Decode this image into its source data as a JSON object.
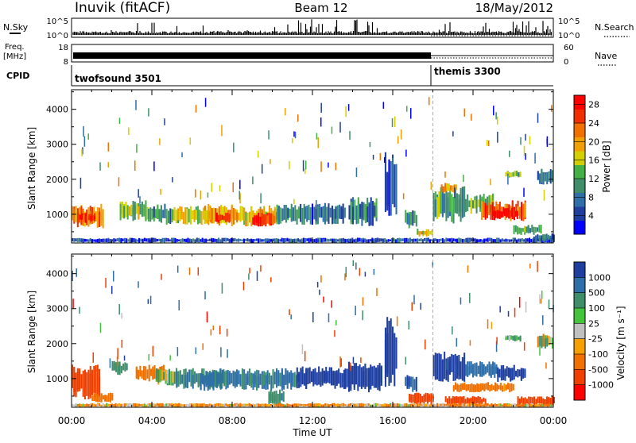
{
  "header": {
    "station": "Inuvik (fitACF)",
    "beam": "Beam 12",
    "date": "18/May/2012"
  },
  "strip_labels": {
    "nsky": "N.Sky",
    "nsearch": "N.Search",
    "freq_line1": "Freq.",
    "freq_line2": "[MHz]",
    "nave": "Nave",
    "cpid": "CPID"
  },
  "strip_ticks": {
    "nsky_left": [
      "10^5",
      "10^0"
    ],
    "nsky_right": [
      "10^5",
      "10^0"
    ],
    "freq_left": [
      "18",
      "8"
    ],
    "nave_right": [
      "60",
      "0"
    ]
  },
  "modes": [
    {
      "label": "twofsound 3501",
      "start_hour": 0
    },
    {
      "label": "themis 3300",
      "start_hour": 18
    }
  ],
  "colors": {
    "power_scale": [
      "#0000ff",
      "#1f3f9f",
      "#2e6ea9",
      "#3e8e6a",
      "#45b045",
      "#d4d000",
      "#f0a000",
      "#f07000",
      "#f03000",
      "#ff0000"
    ],
    "velocity_scale": [
      "#1f3fa0",
      "#2e6ea9",
      "#3e8e6a",
      "#44c43a",
      "#c0c0c0",
      "#f5a000",
      "#f07000",
      "#f04000",
      "#ff0000"
    ]
  },
  "chart_data": [
    {
      "type": "heatmap",
      "panel": "power",
      "ylabel": "Slant Range [km]",
      "xlabel": "",
      "x_ticks": [
        "00:00",
        "04:00",
        "08:00",
        "12:00",
        "16:00",
        "20:00",
        "00:00"
      ],
      "y_ticks": [
        1000,
        2000,
        3000,
        4000
      ],
      "ylim": [
        180,
        4560
      ],
      "xlim_hours": [
        0,
        24
      ],
      "colorbar_label": "Power [dB]",
      "colorbar_ticks": [
        4,
        8,
        12,
        16,
        20,
        24,
        28
      ],
      "colorbar_range": [
        0,
        30
      ],
      "mode_change_hour": 18,
      "bands": [
        {
          "t0": 0.0,
          "t1": 1.6,
          "r0": 600,
          "r1": 1300,
          "value": 22
        },
        {
          "t0": 0.3,
          "t1": 1.2,
          "r0": 750,
          "r1": 1050,
          "value": 27
        },
        {
          "t0": 2.4,
          "t1": 3.8,
          "r0": 800,
          "r1": 1400,
          "value": 14
        },
        {
          "t0": 3.8,
          "t1": 5.0,
          "r0": 700,
          "r1": 1300,
          "value": 10
        },
        {
          "t0": 5.0,
          "t1": 7.0,
          "r0": 700,
          "r1": 1250,
          "value": 16
        },
        {
          "t0": 6.6,
          "t1": 8.2,
          "r0": 650,
          "r1": 1300,
          "value": 20
        },
        {
          "t0": 7.2,
          "t1": 7.9,
          "r0": 750,
          "r1": 1050,
          "value": 26
        },
        {
          "t0": 8.2,
          "t1": 10.2,
          "r0": 650,
          "r1": 1250,
          "value": 18
        },
        {
          "t0": 9.0,
          "t1": 10.1,
          "r0": 650,
          "r1": 1050,
          "value": 27
        },
        {
          "t0": 10.2,
          "t1": 11.6,
          "r0": 700,
          "r1": 1300,
          "value": 10
        },
        {
          "t0": 11.6,
          "t1": 13.6,
          "r0": 700,
          "r1": 1350,
          "value": 7
        },
        {
          "t0": 13.8,
          "t1": 15.2,
          "r0": 650,
          "r1": 1500,
          "value": 9
        },
        {
          "t0": 15.6,
          "t1": 16.2,
          "r0": 700,
          "r1": 2800,
          "value": 6
        },
        {
          "t0": 16.6,
          "t1": 17.2,
          "r0": 600,
          "r1": 1150,
          "value": 8
        },
        {
          "t0": 18.0,
          "t1": 19.6,
          "r0": 700,
          "r1": 1800,
          "value": 12
        },
        {
          "t0": 18.4,
          "t1": 19.2,
          "r0": 1600,
          "r1": 1900,
          "value": 20
        },
        {
          "t0": 19.6,
          "t1": 21.0,
          "r0": 1000,
          "r1": 1600,
          "value": 14
        },
        {
          "t0": 20.4,
          "t1": 22.6,
          "r0": 800,
          "r1": 1400,
          "value": 24
        },
        {
          "t0": 21.0,
          "t1": 22.2,
          "r0": 850,
          "r1": 1200,
          "value": 29
        },
        {
          "t0": 22.0,
          "t1": 23.4,
          "r0": 400,
          "r1": 700,
          "value": 11
        },
        {
          "t0": 21.6,
          "t1": 22.4,
          "r0": 2050,
          "r1": 2250,
          "value": 12
        },
        {
          "t0": 23.2,
          "t1": 24.0,
          "r0": 1850,
          "r1": 2300,
          "value": 7
        },
        {
          "t0": 0.0,
          "t1": 24.0,
          "r0": 180,
          "r1": 330,
          "value": 5
        },
        {
          "t0": 17.2,
          "t1": 18.0,
          "r0": 350,
          "r1": 600,
          "value": 18
        },
        {
          "t0": 23.0,
          "t1": 24.0,
          "r0": 200,
          "r1": 450,
          "value": 9
        }
      ]
    },
    {
      "type": "heatmap",
      "panel": "velocity",
      "ylabel": "Slant Range [km]",
      "xlabel": "Time UT",
      "x_ticks": [
        "00:00",
        "04:00",
        "08:00",
        "12:00",
        "16:00",
        "20:00",
        "00:00"
      ],
      "y_ticks": [
        1000,
        2000,
        3000,
        4000
      ],
      "ylim": [
        180,
        4560
      ],
      "xlim_hours": [
        0,
        24
      ],
      "colorbar_label": "Velocity [m s⁻¹]",
      "colorbar_ticks": [
        "1000",
        "500",
        "100",
        "25",
        "-25",
        "-100",
        "-500",
        "-1000"
      ],
      "mode_change_hour": 18,
      "bands": [
        {
          "t0": 0.0,
          "t1": 1.4,
          "r0": 400,
          "r1": 1400,
          "value": -400
        },
        {
          "t0": 2.0,
          "t1": 2.8,
          "r0": 1100,
          "r1": 1500,
          "value": 150
        },
        {
          "t0": 3.2,
          "t1": 4.6,
          "r0": 900,
          "r1": 1400,
          "value": -150
        },
        {
          "t0": 4.2,
          "t1": 5.2,
          "r0": 800,
          "r1": 1300,
          "value": 60
        },
        {
          "t0": 5.2,
          "t1": 7.6,
          "r0": 700,
          "r1": 1300,
          "value": 200
        },
        {
          "t0": 6.4,
          "t1": 11.2,
          "r0": 650,
          "r1": 1300,
          "value": 300
        },
        {
          "t0": 9.8,
          "t1": 10.6,
          "r0": 200,
          "r1": 700,
          "value": 200
        },
        {
          "t0": 11.2,
          "t1": 13.6,
          "r0": 700,
          "r1": 1350,
          "value": 700
        },
        {
          "t0": 13.6,
          "t1": 15.4,
          "r0": 600,
          "r1": 1500,
          "value": 900
        },
        {
          "t0": 15.6,
          "t1": 16.2,
          "r0": 700,
          "r1": 2800,
          "value": 800
        },
        {
          "t0": 16.6,
          "t1": 17.2,
          "r0": 600,
          "r1": 1150,
          "value": 600
        },
        {
          "t0": 18.0,
          "t1": 19.6,
          "r0": 900,
          "r1": 1800,
          "value": 800
        },
        {
          "t0": 19.6,
          "t1": 21.2,
          "r0": 1000,
          "r1": 1500,
          "value": 400
        },
        {
          "t0": 21.2,
          "t1": 22.6,
          "r0": 900,
          "r1": 1400,
          "value": 700
        },
        {
          "t0": 21.6,
          "t1": 22.4,
          "r0": 2050,
          "r1": 2250,
          "value": 60
        },
        {
          "t0": 23.2,
          "t1": 24.0,
          "r0": 1850,
          "r1": 2300,
          "value": 0
        },
        {
          "t0": 1.0,
          "t1": 2.0,
          "r0": 300,
          "r1": 600,
          "value": -150
        },
        {
          "t0": 16.8,
          "t1": 18.0,
          "r0": 250,
          "r1": 600,
          "value": -400
        },
        {
          "t0": 18.6,
          "t1": 20.6,
          "r0": 250,
          "r1": 500,
          "value": -500
        },
        {
          "t0": 22.2,
          "t1": 24.0,
          "r0": 200,
          "r1": 500,
          "value": -400
        },
        {
          "t0": 19.0,
          "t1": 22.0,
          "r0": 600,
          "r1": 900,
          "value": -150
        },
        {
          "t0": 0.0,
          "t1": 24.0,
          "r0": 180,
          "r1": 300,
          "value": -60
        }
      ]
    }
  ]
}
